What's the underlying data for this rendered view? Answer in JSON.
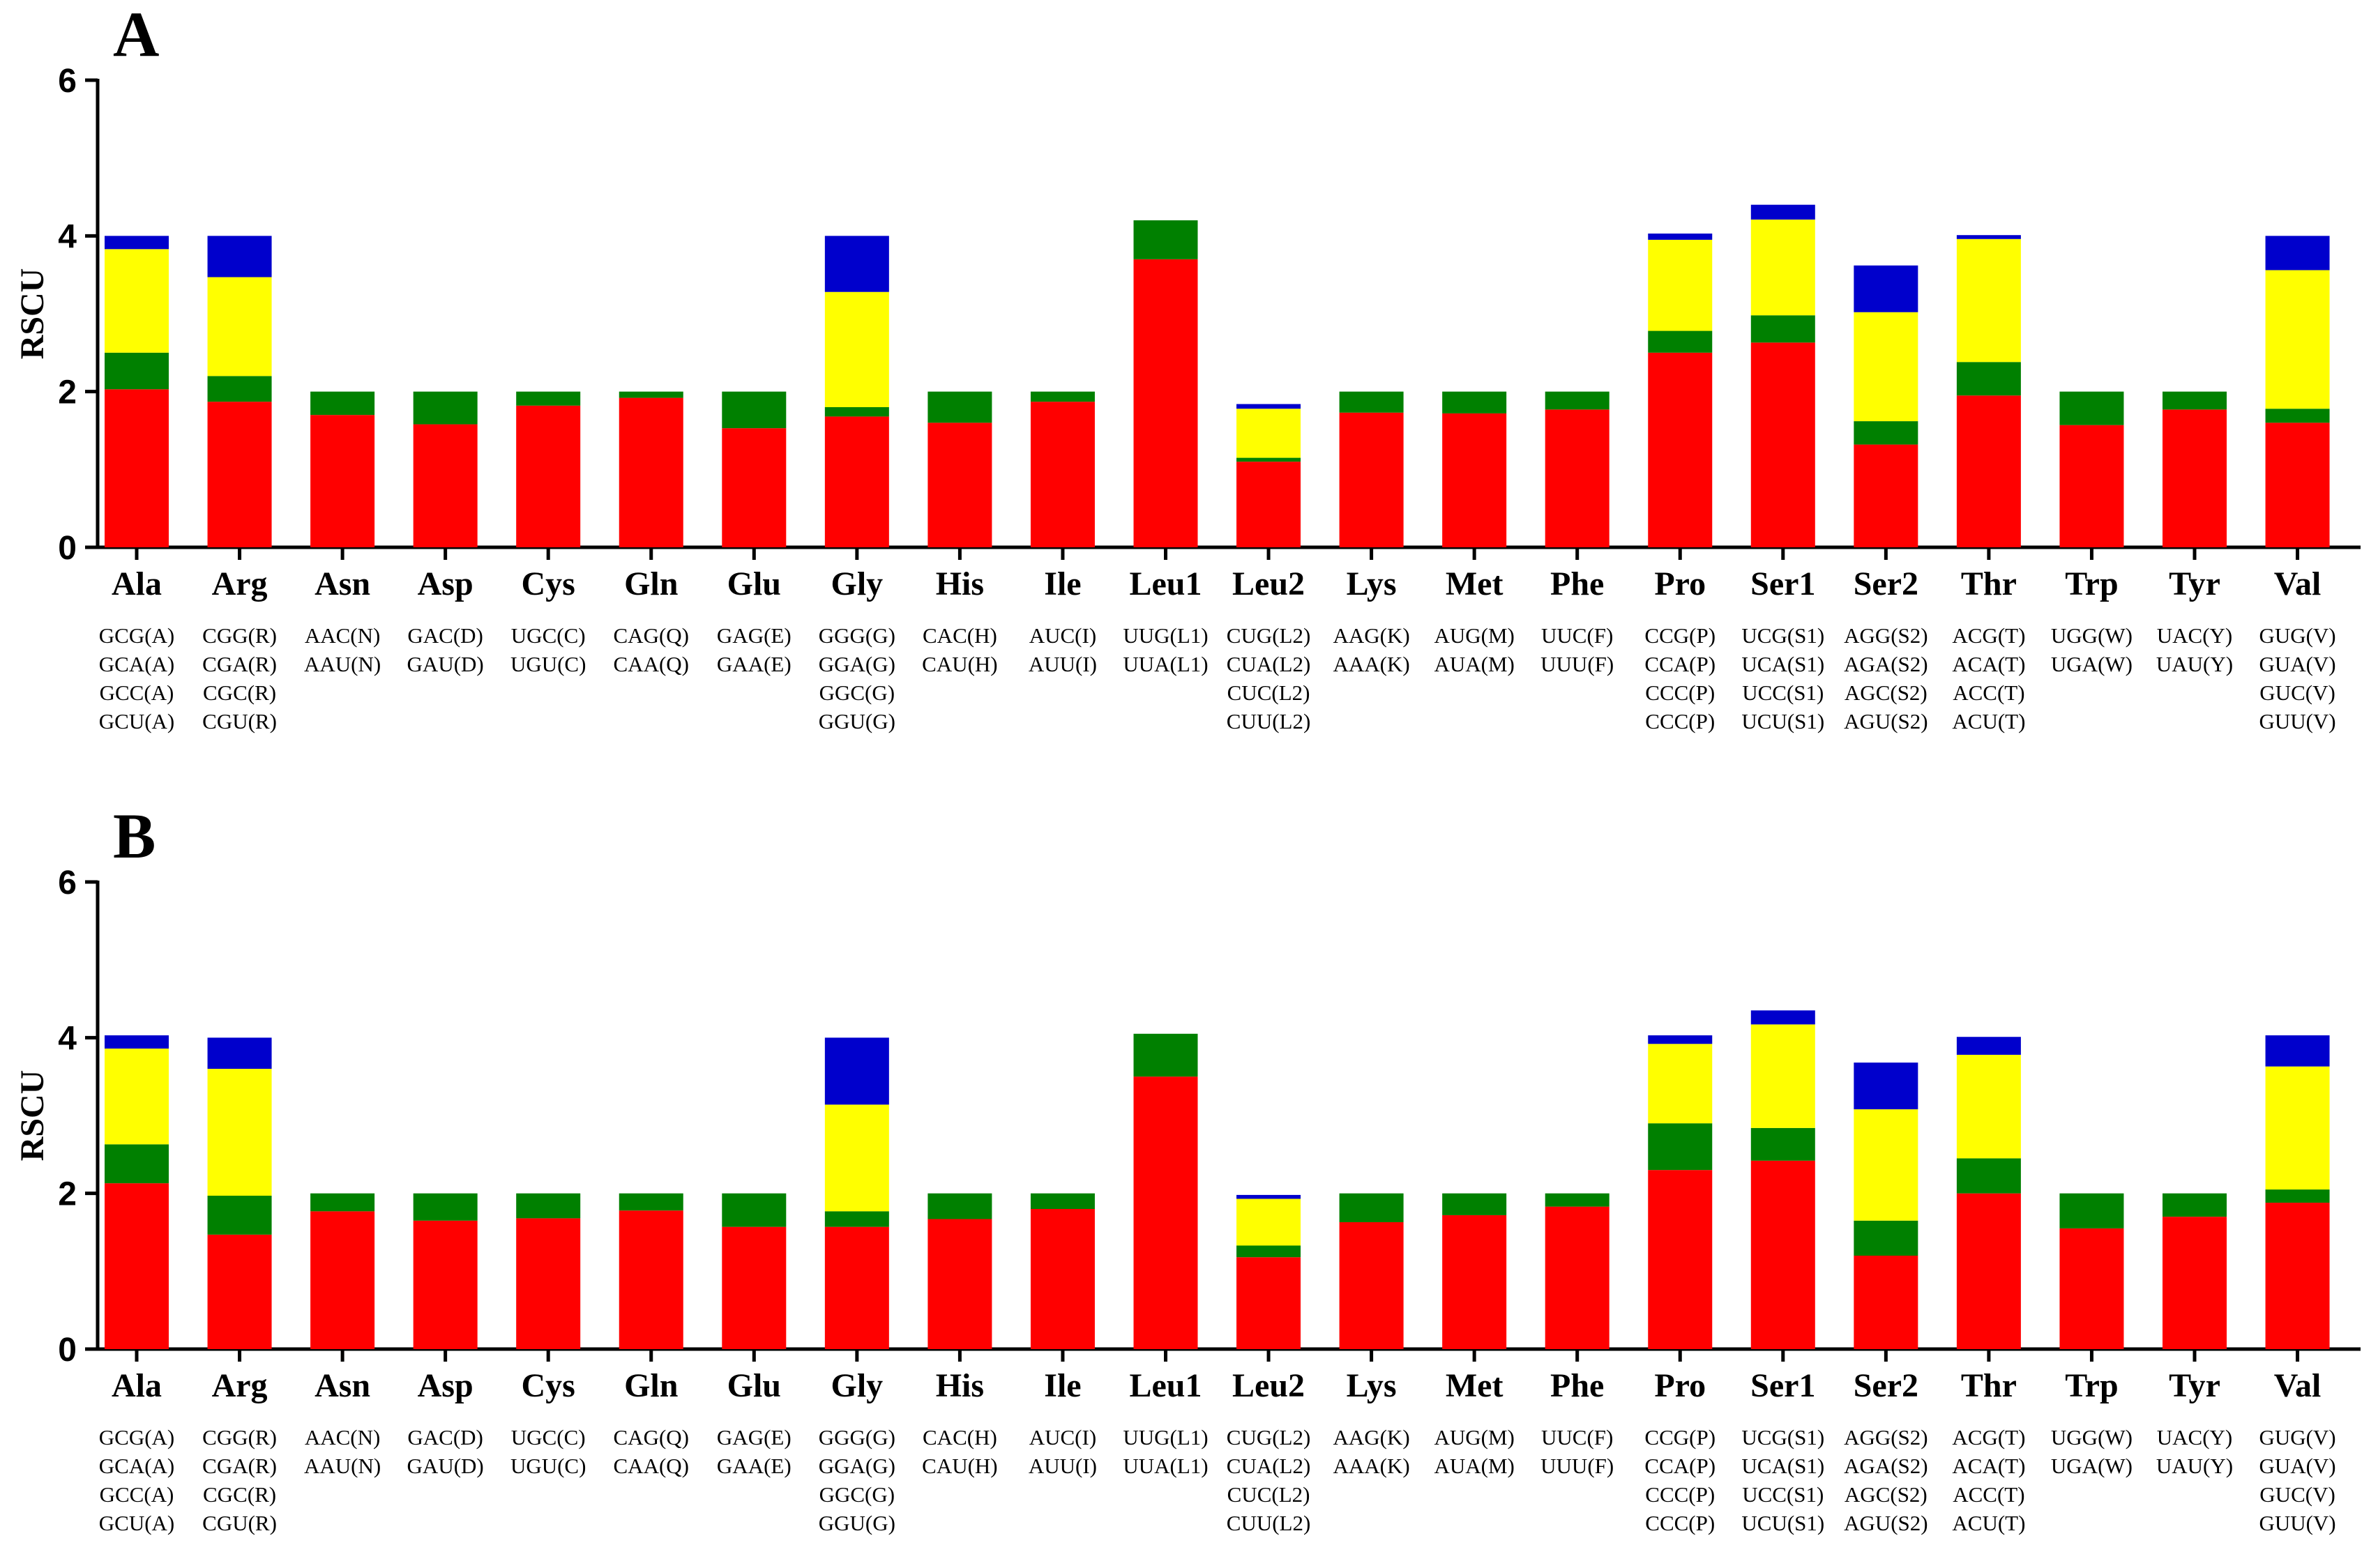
{
  "figure": {
    "ylabel": "RSCU",
    "segment_colors": [
      "#ff0000",
      "#008000",
      "#ffff00",
      "#0000cc"
    ],
    "segment_legend_note": "stack order bottom-to-top follows codon list bottom-to-top"
  },
  "chart_data": [
    {
      "panel_label": "A",
      "type": "bar",
      "stacked": true,
      "ylabel": "RSCU",
      "ylim": [
        0,
        6
      ],
      "yticks": [
        "0",
        "2",
        "4",
        "6"
      ],
      "categories": [
        "Ala",
        "Arg",
        "Asn",
        "Asp",
        "Cys",
        "Gln",
        "Glu",
        "Gly",
        "His",
        "Ile",
        "Leu1",
        "Leu2",
        "Lys",
        "Met",
        "Phe",
        "Pro",
        "Ser1",
        "Ser2",
        "Thr",
        "Trp",
        "Tyr",
        "Val"
      ],
      "codons": [
        [
          "GCG(A)",
          "GCA(A)",
          "GCC(A)",
          "GCU(A)"
        ],
        [
          "CGG(R)",
          "CGA(R)",
          "CGC(R)",
          "CGU(R)"
        ],
        [
          "AAC(N)",
          "AAU(N)"
        ],
        [
          "GAC(D)",
          "GAU(D)"
        ],
        [
          "UGC(C)",
          "UGU(C)"
        ],
        [
          "CAG(Q)",
          "CAA(Q)"
        ],
        [
          "GAG(E)",
          "GAA(E)"
        ],
        [
          "GGG(G)",
          "GGA(G)",
          "GGC(G)",
          "GGU(G)"
        ],
        [
          "CAC(H)",
          "CAU(H)"
        ],
        [
          "AUC(I)",
          "AUU(I)"
        ],
        [
          "UUG(L1)",
          "UUA(L1)"
        ],
        [
          "CUG(L2)",
          "CUA(L2)",
          "CUC(L2)",
          "CUU(L2)"
        ],
        [
          "AAG(K)",
          "AAA(K)"
        ],
        [
          "AUG(M)",
          "AUA(M)"
        ],
        [
          "UUC(F)",
          "UUU(F)"
        ],
        [
          "CCG(P)",
          "CCA(P)",
          "CCC(P)",
          "CCC(P)"
        ],
        [
          "UCG(S1)",
          "UCA(S1)",
          "UCC(S1)",
          "UCU(S1)"
        ],
        [
          "AGG(S2)",
          "AGA(S2)",
          "AGC(S2)",
          "AGU(S2)"
        ],
        [
          "ACG(T)",
          "ACA(T)",
          "ACC(T)",
          "ACU(T)"
        ],
        [
          "UGG(W)",
          "UGA(W)"
        ],
        [
          "UAC(Y)",
          "UAU(Y)"
        ],
        [
          "GUG(V)",
          "GUA(V)",
          "GUC(V)",
          "GUU(V)"
        ]
      ],
      "segments": [
        [
          2.03,
          0.47,
          1.33,
          0.17
        ],
        [
          1.87,
          0.33,
          1.27,
          0.53
        ],
        [
          1.7,
          0.3
        ],
        [
          1.58,
          0.42
        ],
        [
          1.82,
          0.18
        ],
        [
          1.92,
          0.08
        ],
        [
          1.53,
          0.47
        ],
        [
          1.68,
          0.12,
          1.48,
          0.72
        ],
        [
          1.6,
          0.4
        ],
        [
          1.87,
          0.13
        ],
        [
          3.7,
          0.5
        ],
        [
          1.1,
          0.05,
          0.63,
          0.06
        ],
        [
          1.73,
          0.27
        ],
        [
          1.72,
          0.28
        ],
        [
          1.77,
          0.23
        ],
        [
          2.5,
          0.28,
          1.17,
          0.08
        ],
        [
          2.63,
          0.35,
          1.23,
          0.19
        ],
        [
          1.32,
          0.3,
          1.4,
          0.6
        ],
        [
          1.95,
          0.43,
          1.58,
          0.05
        ],
        [
          1.57,
          0.43
        ],
        [
          1.77,
          0.23
        ],
        [
          1.6,
          0.18,
          1.78,
          0.44
        ]
      ]
    },
    {
      "panel_label": "B",
      "type": "bar",
      "stacked": true,
      "ylabel": "RSCU",
      "ylim": [
        0,
        6
      ],
      "yticks": [
        "0",
        "2",
        "4",
        "6"
      ],
      "categories": [
        "Ala",
        "Arg",
        "Asn",
        "Asp",
        "Cys",
        "Gln",
        "Glu",
        "Gly",
        "His",
        "Ile",
        "Leu1",
        "Leu2",
        "Lys",
        "Met",
        "Phe",
        "Pro",
        "Ser1",
        "Ser2",
        "Thr",
        "Trp",
        "Tyr",
        "Val"
      ],
      "codons": [
        [
          "GCG(A)",
          "GCA(A)",
          "GCC(A)",
          "GCU(A)"
        ],
        [
          "CGG(R)",
          "CGA(R)",
          "CGC(R)",
          "CGU(R)"
        ],
        [
          "AAC(N)",
          "AAU(N)"
        ],
        [
          "GAC(D)",
          "GAU(D)"
        ],
        [
          "UGC(C)",
          "UGU(C)"
        ],
        [
          "CAG(Q)",
          "CAA(Q)"
        ],
        [
          "GAG(E)",
          "GAA(E)"
        ],
        [
          "GGG(G)",
          "GGA(G)",
          "GGC(G)",
          "GGU(G)"
        ],
        [
          "CAC(H)",
          "CAU(H)"
        ],
        [
          "AUC(I)",
          "AUU(I)"
        ],
        [
          "UUG(L1)",
          "UUA(L1)"
        ],
        [
          "CUG(L2)",
          "CUA(L2)",
          "CUC(L2)",
          "CUU(L2)"
        ],
        [
          "AAG(K)",
          "AAA(K)"
        ],
        [
          "AUG(M)",
          "AUA(M)"
        ],
        [
          "UUC(F)",
          "UUU(F)"
        ],
        [
          "CCG(P)",
          "CCA(P)",
          "CCC(P)",
          "CCC(P)"
        ],
        [
          "UCG(S1)",
          "UCA(S1)",
          "UCC(S1)",
          "UCU(S1)"
        ],
        [
          "AGG(S2)",
          "AGA(S2)",
          "AGC(S2)",
          "AGU(S2)"
        ],
        [
          "ACG(T)",
          "ACA(T)",
          "ACC(T)",
          "ACU(T)"
        ],
        [
          "UGG(W)",
          "UGA(W)"
        ],
        [
          "UAC(Y)",
          "UAU(Y)"
        ],
        [
          "GUG(V)",
          "GUA(V)",
          "GUC(V)",
          "GUU(V)"
        ]
      ],
      "segments": [
        [
          2.13,
          0.5,
          1.23,
          0.17
        ],
        [
          1.47,
          0.5,
          1.63,
          0.4
        ],
        [
          1.77,
          0.23
        ],
        [
          1.65,
          0.35
        ],
        [
          1.68,
          0.32
        ],
        [
          1.78,
          0.22
        ],
        [
          1.57,
          0.43
        ],
        [
          1.57,
          0.2,
          1.37,
          0.86
        ],
        [
          1.67,
          0.33
        ],
        [
          1.8,
          0.2
        ],
        [
          3.5,
          0.55
        ],
        [
          1.18,
          0.15,
          0.6,
          0.05
        ],
        [
          1.63,
          0.37
        ],
        [
          1.72,
          0.28
        ],
        [
          1.83,
          0.17
        ],
        [
          2.3,
          0.6,
          1.02,
          0.11
        ],
        [
          2.42,
          0.42,
          1.33,
          0.18
        ],
        [
          1.2,
          0.45,
          1.43,
          0.6
        ],
        [
          2.0,
          0.45,
          1.33,
          0.23
        ],
        [
          1.55,
          0.45
        ],
        [
          1.7,
          0.3
        ],
        [
          1.88,
          0.17,
          1.58,
          0.4
        ]
      ]
    }
  ]
}
